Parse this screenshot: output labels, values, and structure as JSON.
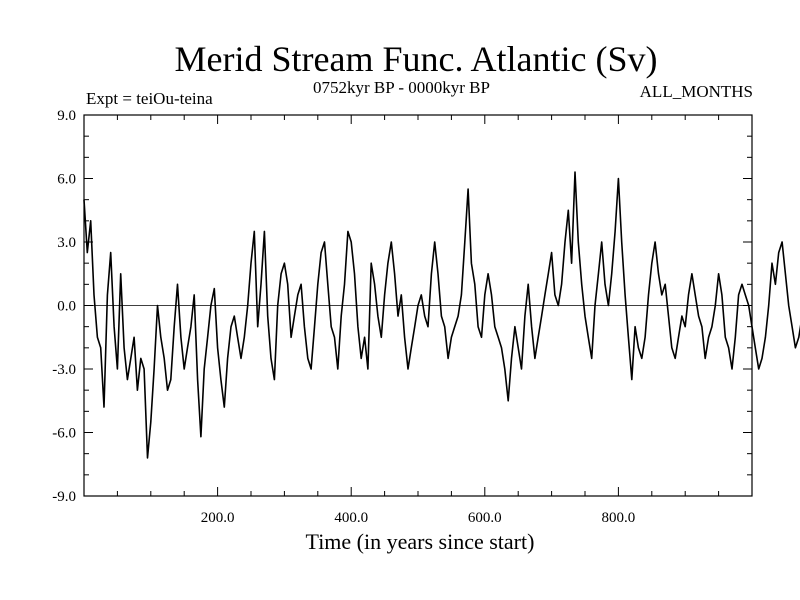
{
  "chart_data": {
    "type": "line",
    "title": "Merid Stream Func. Atlantic (Sv)",
    "experiment_label": "Expt = teiOu-teina",
    "period_label": "0752kyr BP - 0000kyr BP",
    "months_label": "ALL_MONTHS",
    "xlabel": "Time (in years since start)",
    "ylabel": "",
    "xlim": [
      0,
      1000
    ],
    "ylim": [
      -9.0,
      9.0
    ],
    "x_ticks": [
      200,
      400,
      600,
      800
    ],
    "x_tick_labels": [
      "200.0",
      "400.0",
      "600.0",
      "800.0"
    ],
    "y_ticks": [
      9,
      6,
      3,
      0,
      -3,
      -6,
      -9
    ],
    "y_tick_labels": [
      "9.0",
      "6.0",
      "3.0",
      "0.0",
      "-3.0",
      "-6.0",
      "-9.0"
    ],
    "zero_line": true,
    "series": [
      {
        "name": "Meridional stream function (annual, approx. digitized)",
        "x_start": 0,
        "x_step": 5,
        "values": [
          5.0,
          2.5,
          4.0,
          0.5,
          -1.5,
          -2.0,
          -4.8,
          0.5,
          2.5,
          -1.0,
          -3.0,
          1.5,
          -2.0,
          -3.5,
          -2.5,
          -1.5,
          -4.0,
          -2.5,
          -3.0,
          -7.2,
          -5.5,
          -3.0,
          0.0,
          -1.5,
          -2.5,
          -4.0,
          -3.5,
          -1.0,
          1.0,
          -1.5,
          -3.0,
          -2.0,
          -1.0,
          0.5,
          -3.5,
          -6.2,
          -3.0,
          -1.5,
          0.0,
          0.8,
          -2.0,
          -3.5,
          -4.8,
          -2.5,
          -1.0,
          -0.5,
          -1.5,
          -2.5,
          -1.5,
          0.0,
          2.0,
          3.5,
          -1.0,
          1.0,
          3.5,
          -0.5,
          -2.5,
          -3.5,
          0.0,
          1.5,
          2.0,
          1.0,
          -1.5,
          -0.5,
          0.5,
          1.0,
          -1.0,
          -2.5,
          -3.0,
          -1.0,
          1.0,
          2.5,
          3.0,
          1.0,
          -1.0,
          -1.5,
          -3.0,
          -0.5,
          1.0,
          3.5,
          3.0,
          1.5,
          -1.0,
          -2.5,
          -1.5,
          -3.0,
          2.0,
          1.0,
          -0.5,
          -1.5,
          0.5,
          2.0,
          3.0,
          1.5,
          -0.5,
          0.5,
          -1.5,
          -3.0,
          -2.0,
          -1.0,
          0.0,
          0.5,
          -0.5,
          -1.0,
          1.5,
          3.0,
          1.5,
          -0.5,
          -1.0,
          -2.5,
          -1.5,
          -1.0,
          -0.5,
          0.5,
          3.0,
          5.5,
          2.0,
          1.0,
          -1.0,
          -1.5,
          0.5,
          1.5,
          0.5,
          -1.0,
          -1.5,
          -2.0,
          -3.0,
          -4.5,
          -2.5,
          -1.0,
          -2.0,
          -3.0,
          -0.5,
          1.0,
          -1.0,
          -2.5,
          -1.5,
          -0.5,
          0.5,
          1.5,
          2.5,
          0.5,
          0.0,
          1.0,
          3.0,
          4.5,
          2.0,
          6.3,
          3.0,
          1.0,
          -0.5,
          -1.5,
          -2.5,
          0.0,
          1.5,
          3.0,
          1.0,
          0.0,
          1.5,
          3.5,
          6.0,
          3.0,
          0.5,
          -1.5,
          -3.5,
          -1.0,
          -2.0,
          -2.5,
          -1.5,
          0.5,
          2.0,
          3.0,
          1.5,
          0.5,
          1.0,
          -0.5,
          -2.0,
          -2.5,
          -1.5,
          -0.5,
          -1.0,
          0.5,
          1.5,
          0.5,
          -0.5,
          -1.0,
          -2.5,
          -1.5,
          -1.0,
          0.0,
          1.5,
          0.5,
          -1.5,
          -2.0,
          -3.0,
          -1.5,
          0.5,
          1.0,
          0.5,
          0.0,
          -1.0,
          -2.0,
          -3.0,
          -2.5,
          -1.5,
          0.0,
          2.0,
          1.0,
          2.5,
          3.0,
          1.5,
          0.0,
          -1.0,
          -2.0,
          -1.5,
          -0.5,
          0.5,
          2.0,
          1.0,
          0.5,
          1.5,
          0.0,
          -1.0,
          -2.0,
          -0.5,
          -1.5,
          -2.5,
          -1.5,
          0.0,
          0.5,
          -1.0,
          -1.5,
          -0.5,
          0.5,
          -0.5,
          -2.0,
          -1.5,
          -1.0,
          0.0,
          2.0,
          4.5,
          6.2,
          3.5,
          1.0,
          -0.5,
          0.5,
          2.0,
          1.0,
          -0.5,
          -1.5,
          -2.5,
          -3.5,
          -4.5,
          -2.0,
          0.0,
          1.5,
          0.5,
          1.0,
          2.5,
          1.5,
          0.5,
          -1.0,
          -2.0,
          -1.0,
          0.5,
          1.5,
          0.5,
          -0.5,
          -2.0,
          -3.5,
          -2.5,
          -1.5,
          -0.5,
          0.5,
          1.5,
          0.5,
          -1.0,
          -2.5,
          -5.7,
          -2.5,
          -1.0,
          0.5,
          1.0,
          2.0,
          0.5,
          -0.5,
          -1.5,
          -3.0,
          -1.5,
          -0.5,
          0.0,
          1.0,
          2.0,
          0.5,
          -1.0,
          -2.0,
          -3.0,
          -1.5,
          0.5,
          1.5,
          0.5,
          -0.5,
          -1.5,
          -2.5,
          -1.0,
          0.0,
          1.5,
          2.0,
          0.5,
          -1.0,
          -2.0,
          -0.5,
          1.0,
          0.5,
          -1.5,
          -2.5,
          -1.5,
          -0.5,
          0.5,
          1.5,
          0.5,
          -0.5,
          -1.5,
          -3.0,
          -1.5,
          0.0,
          1.0,
          2.5,
          3.5,
          2.0,
          0.5,
          -1.5,
          -3.0,
          -6.3,
          -3.0,
          -1.0,
          0.5,
          1.0,
          -0.5,
          -2.0,
          -3.5,
          -2.0,
          -1.0,
          0.0,
          1.5,
          2.5,
          1.0,
          -0.5,
          -2.0,
          -3.0,
          -4.5,
          -2.5,
          -1.0,
          0.5,
          1.5,
          3.5,
          2.0,
          0.5,
          -1.0,
          -2.0,
          -1.0,
          0.0,
          1.5,
          3.0,
          4.5,
          7.9,
          4.0,
          2.5,
          1.0,
          2.0,
          3.5,
          5.0,
          2.5,
          1.0,
          0.5,
          2.5,
          4.5,
          6.7,
          3.5,
          2.0,
          1.0,
          3.0,
          1.5,
          0.0,
          2.0,
          3.5,
          2.5,
          1.0,
          -0.5,
          -2.5,
          -3.5,
          -1.5,
          -0.5,
          1.0,
          2.0,
          0.5,
          -1.5,
          -2.5,
          -5.0,
          -3.0,
          -1.0,
          -3.0,
          -6.4,
          -3.5,
          -1.5,
          -4.5,
          -3.0,
          -1.0,
          -2.0,
          -0.5,
          0.5,
          1.5,
          0.5,
          2.0,
          3.5,
          1.5,
          0.5,
          2.0,
          1.0,
          -0.5,
          0.5,
          1.5,
          2.5,
          1.0,
          -0.5,
          -1.5,
          -0.5,
          0.5,
          1.5,
          0.5,
          -1.0,
          -2.0,
          -0.5,
          0.5,
          1.5,
          2.0,
          0.5,
          -1.0,
          -2.0,
          -1.0,
          0.5,
          -0.5,
          -1.5,
          -2.5,
          -1.0,
          0.5,
          1.0,
          0.0,
          -1.0,
          -1.5,
          -0.5,
          0.5,
          1.5,
          0.5,
          -0.5,
          0.5
        ]
      }
    ]
  }
}
